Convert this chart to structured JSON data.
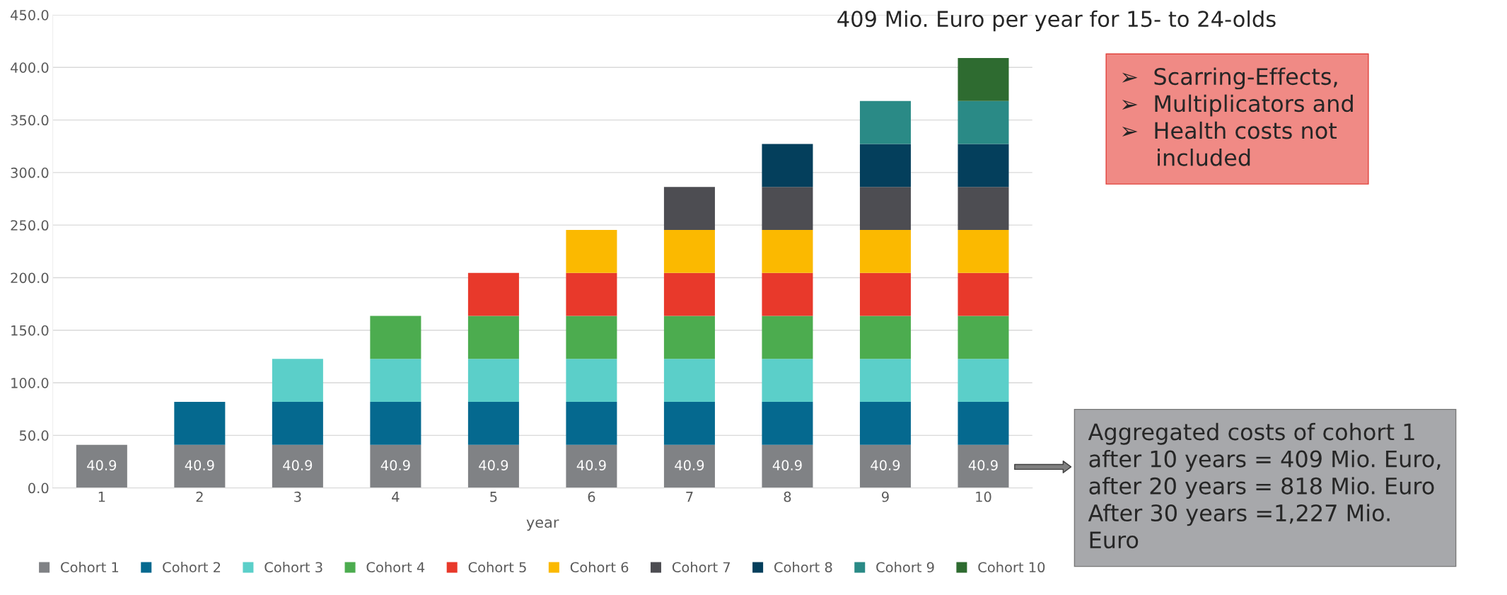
{
  "chart_data": {
    "type": "bar",
    "stacked": true,
    "title": "409 Mio. Euro per year for 15- to 24-olds",
    "xlabel": "year",
    "categories": [
      "1",
      "2",
      "3",
      "4",
      "5",
      "6",
      "7",
      "8",
      "9",
      "10"
    ],
    "series": [
      {
        "name": "Cohort 1",
        "color": "#808285",
        "values": [
          40.9,
          40.9,
          40.9,
          40.9,
          40.9,
          40.9,
          40.9,
          40.9,
          40.9,
          40.9
        ],
        "value_labels": [
          "40.9",
          "40.9",
          "40.9",
          "40.9",
          "40.9",
          "40.9",
          "40.9",
          "40.9",
          "40.9",
          "40.9"
        ]
      },
      {
        "name": "Cohort 2",
        "color": "#05698f",
        "values": [
          null,
          40.9,
          40.9,
          40.9,
          40.9,
          40.9,
          40.9,
          40.9,
          40.9,
          40.9
        ]
      },
      {
        "name": "Cohort 3",
        "color": "#5bcfc9",
        "values": [
          null,
          null,
          40.9,
          40.9,
          40.9,
          40.9,
          40.9,
          40.9,
          40.9,
          40.9
        ]
      },
      {
        "name": "Cohort 4",
        "color": "#4cac4f",
        "values": [
          null,
          null,
          null,
          40.9,
          40.9,
          40.9,
          40.9,
          40.9,
          40.9,
          40.9
        ]
      },
      {
        "name": "Cohort 5",
        "color": "#e8392b",
        "values": [
          null,
          null,
          null,
          null,
          40.9,
          40.9,
          40.9,
          40.9,
          40.9,
          40.9
        ]
      },
      {
        "name": "Cohort 6",
        "color": "#fbb900",
        "values": [
          null,
          null,
          null,
          null,
          null,
          40.9,
          40.9,
          40.9,
          40.9,
          40.9
        ]
      },
      {
        "name": "Cohort 7",
        "color": "#4d4d52",
        "values": [
          null,
          null,
          null,
          null,
          null,
          null,
          40.9,
          40.9,
          40.9,
          40.9
        ]
      },
      {
        "name": "Cohort 8",
        "color": "#043f5c",
        "values": [
          null,
          null,
          null,
          null,
          null,
          null,
          null,
          40.9,
          40.9,
          40.9
        ]
      },
      {
        "name": "Cohort 9",
        "color": "#2a8a86",
        "values": [
          null,
          null,
          null,
          null,
          null,
          null,
          null,
          null,
          40.9,
          40.9
        ]
      },
      {
        "name": "Cohort 10",
        "color": "#2e6b30",
        "values": [
          null,
          null,
          null,
          null,
          null,
          null,
          null,
          null,
          null,
          40.9
        ]
      }
    ],
    "ylim": [
      0,
      450
    ],
    "yticks": [
      {
        "value": 0,
        "label": "0.0"
      },
      {
        "value": 50,
        "label": "50.0"
      },
      {
        "value": 100,
        "label": "100.0"
      },
      {
        "value": 150,
        "label": "150.0"
      },
      {
        "value": 200,
        "label": "200.0"
      },
      {
        "value": 250,
        "label": "250.0"
      },
      {
        "value": 300,
        "label": "300.0"
      },
      {
        "value": 350,
        "label": "350.0"
      },
      {
        "value": 400,
        "label": "400.0"
      },
      {
        "value": 450,
        "label": "450.0"
      }
    ],
    "grid": "y",
    "legend": "bottom",
    "annotations": [
      "➢  Scarring-Effects,\n➢  Multiplicators and\n➢  Health costs not\n     included",
      "Aggregated costs of cohort 1\nafter 10 years = 409 Mio. Euro,\nafter 20 years = 818 Mio. Euro\nAfter 30 years =1,227 Mio.\nEuro"
    ]
  }
}
